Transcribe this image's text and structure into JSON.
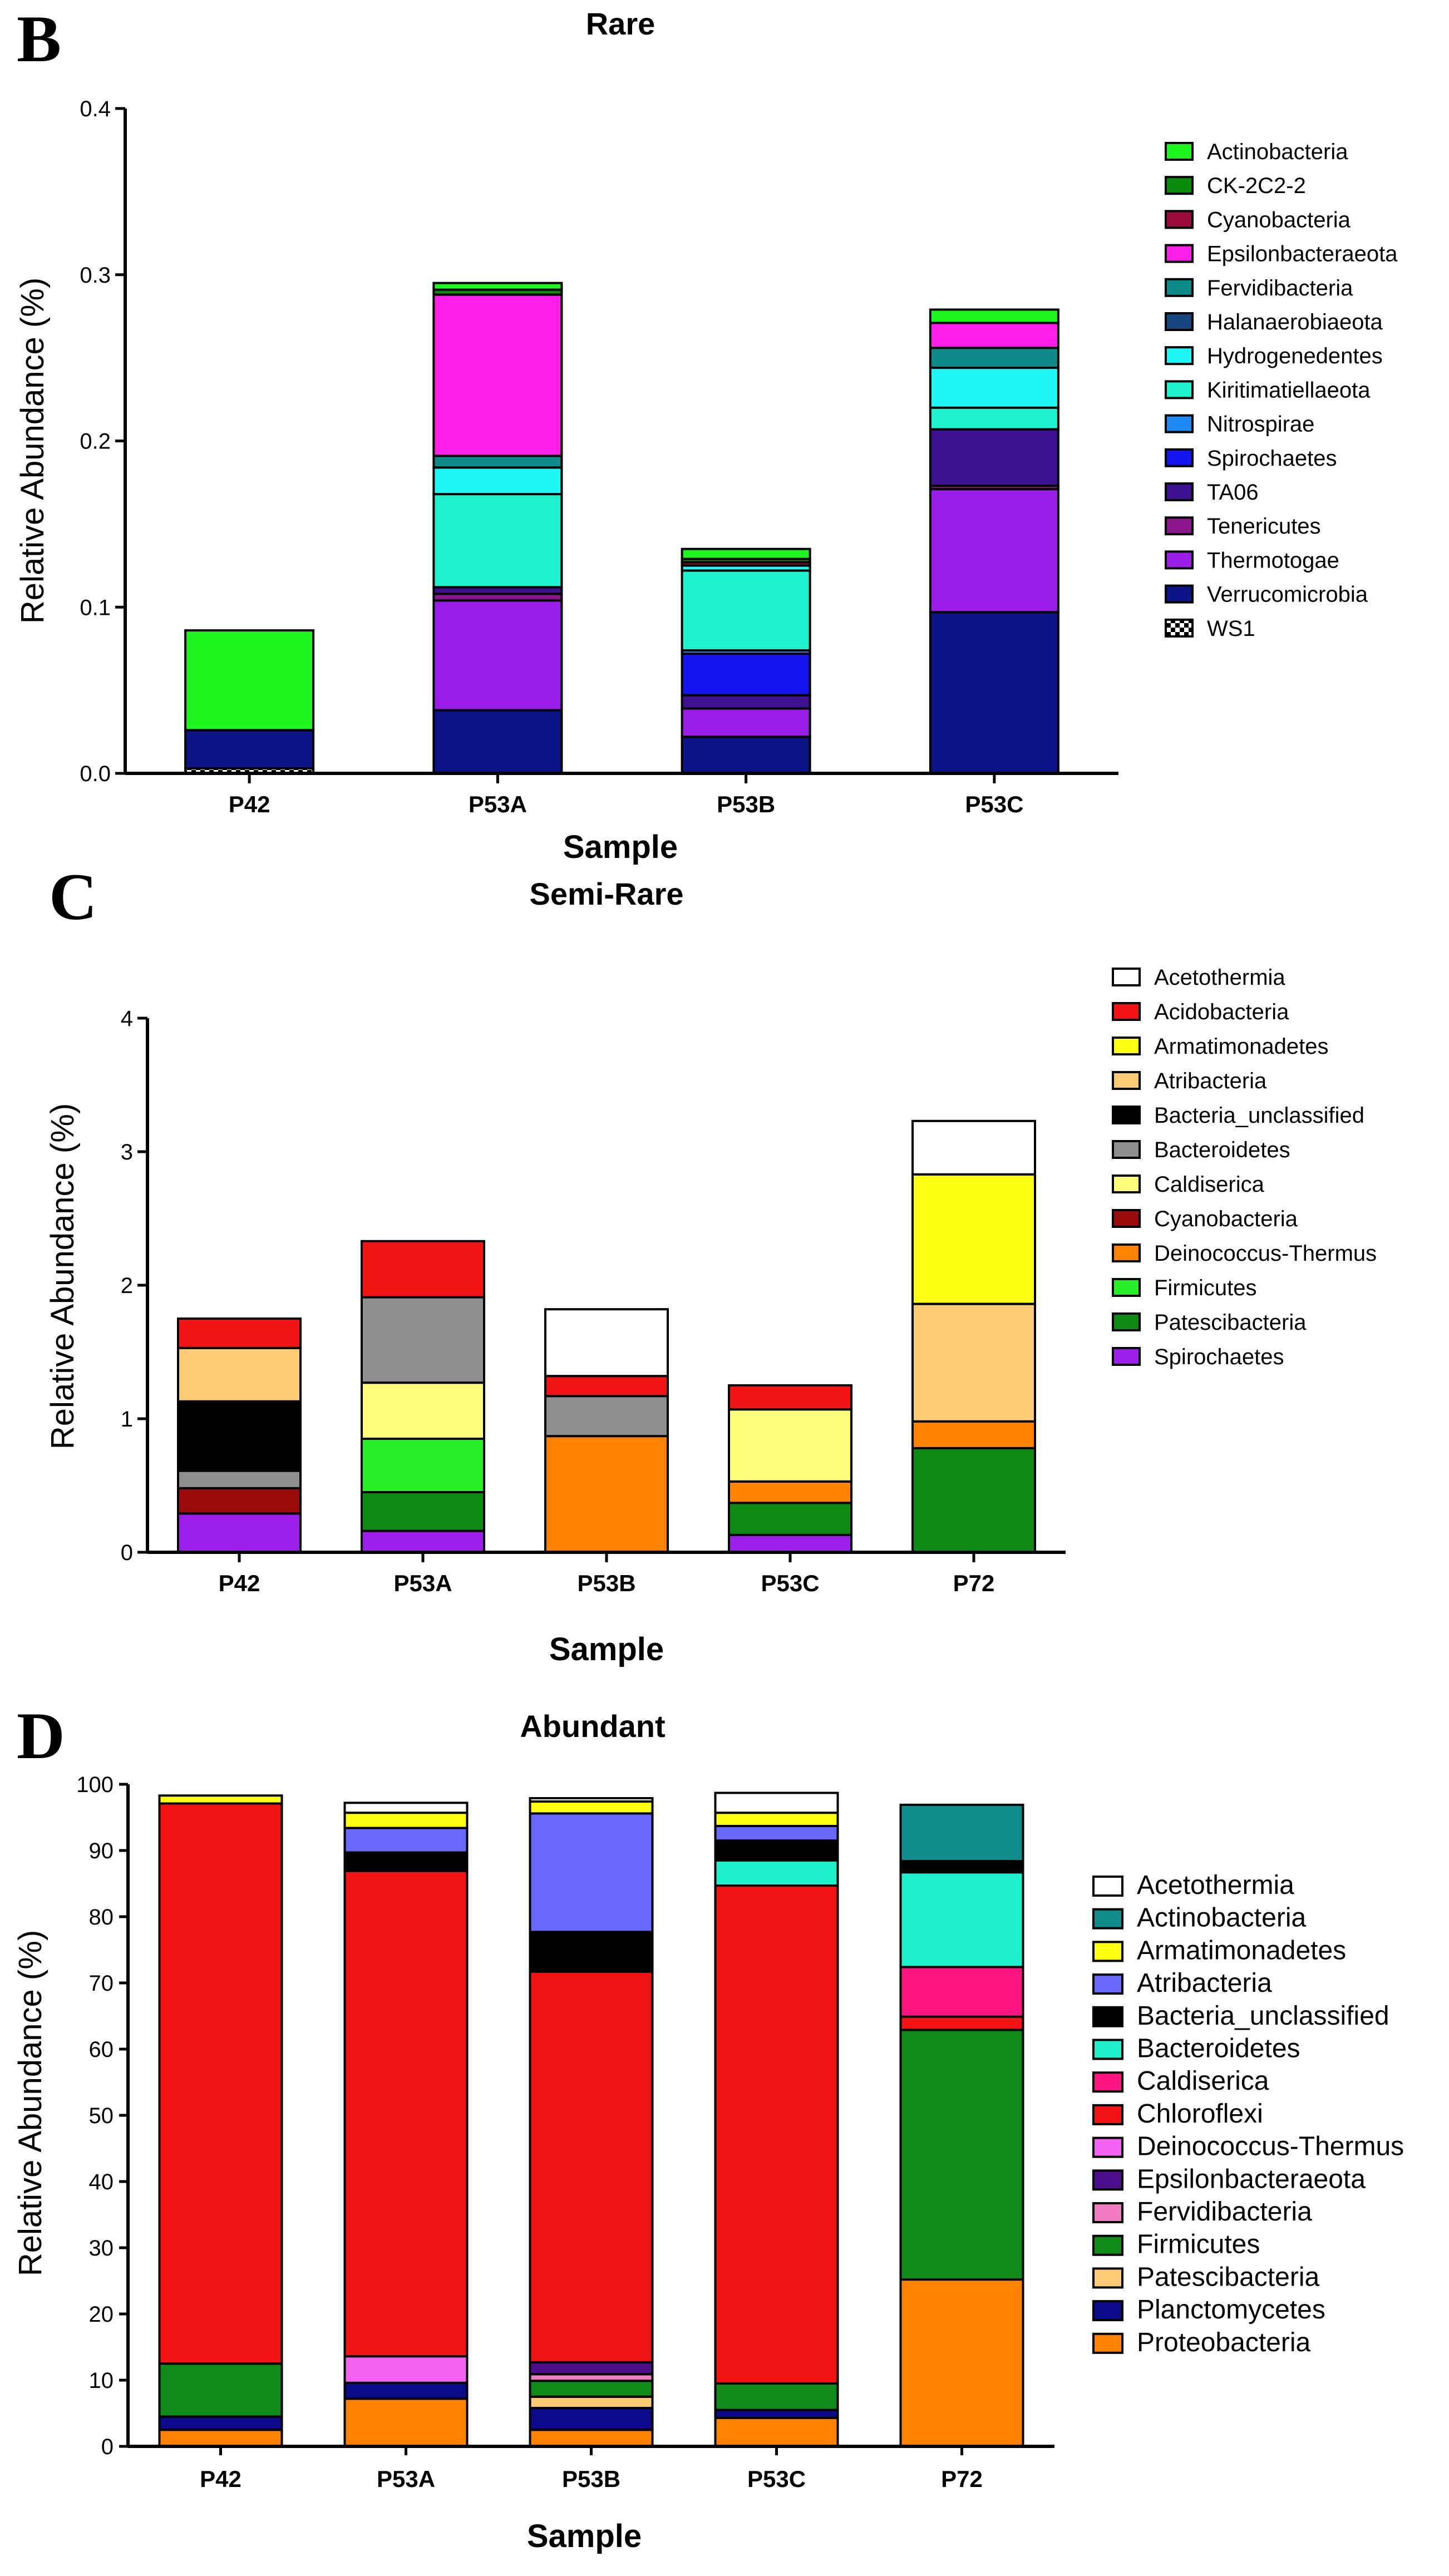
{
  "chart_data": [
    {
      "type": "bar",
      "stacked": true,
      "panel": "B",
      "title": "Rare",
      "xlabel": "Sample",
      "ylabel": "Relative Abundance (%)",
      "ylim": [
        0,
        0.4
      ],
      "yticks": [
        "0.0",
        "0.1",
        "0.2",
        "0.3",
        "0.4"
      ],
      "categories": [
        "P42",
        "P53A",
        "P53B",
        "P53C"
      ],
      "legend_position": "right",
      "series": [
        {
          "name": "Actinobacteria",
          "color": "#1ef41e",
          "values": [
            0.06,
            0.004,
            0.006,
            0.008
          ]
        },
        {
          "name": "CK-2C2-2",
          "color": "#0b8a0b",
          "values": [
            0.0,
            0.003,
            0.002,
            0.0
          ]
        },
        {
          "name": "Cyanobacteria",
          "color": "#9b0a3c",
          "values": [
            0.0,
            0.0,
            0.002,
            0.0
          ]
        },
        {
          "name": "Epsilonbacteraeota",
          "color": "#ff1fe8",
          "values": [
            0.0,
            0.097,
            0.0,
            0.015
          ]
        },
        {
          "name": "Fervidibacteria",
          "color": "#0f8a8a",
          "values": [
            0.0,
            0.007,
            0.0,
            0.012
          ]
        },
        {
          "name": "Halanaerobiaeota",
          "color": "#15467e",
          "values": [
            0.0,
            0.0,
            0.0,
            0.0
          ]
        },
        {
          "name": "Hydrogenedentes",
          "color": "#1ff6f6",
          "values": [
            0.0,
            0.016,
            0.003,
            0.024
          ]
        },
        {
          "name": "Kiritimatiellaeota",
          "color": "#1ff2cf",
          "values": [
            0.0,
            0.056,
            0.048,
            0.013
          ]
        },
        {
          "name": "Nitrospirae",
          "color": "#1f8af4",
          "values": [
            0.0,
            0.0,
            0.002,
            0.0
          ]
        },
        {
          "name": "Spirochaetes",
          "color": "#1414ee",
          "values": [
            0.0,
            0.0,
            0.025,
            0.0
          ]
        },
        {
          "name": "TA06",
          "color": "#3e1092",
          "values": [
            0.0,
            0.004,
            0.008,
            0.034
          ]
        },
        {
          "name": "Tenericutes",
          "color": "#8c178c",
          "values": [
            0.0,
            0.004,
            0.0,
            0.002
          ]
        },
        {
          "name": "Thermotogae",
          "color": "#9a1ee8",
          "values": [
            0.0,
            0.066,
            0.017,
            0.074
          ]
        },
        {
          "name": "Verrucomicrobia",
          "color": "#0c1488",
          "values": [
            0.023,
            0.038,
            0.022,
            0.097
          ]
        },
        {
          "name": "WS1",
          "color": "#ffffff",
          "pattern": "checker",
          "values": [
            0.003,
            0.0,
            0.0,
            0.0
          ]
        }
      ]
    },
    {
      "type": "bar",
      "stacked": true,
      "panel": "C",
      "title": "Semi-Rare",
      "xlabel": "Sample",
      "ylabel": "Relative Abundance (%)",
      "ylim": [
        0,
        4
      ],
      "yticks": [
        "0",
        "1",
        "2",
        "3",
        "4"
      ],
      "categories": [
        "P42",
        "P53A",
        "P53B",
        "P53C",
        "P72"
      ],
      "legend_position": "right",
      "series": [
        {
          "name": "Acetothermia",
          "color": "#ffffff",
          "values": [
            0.0,
            0.0,
            0.5,
            0.0,
            0.4
          ]
        },
        {
          "name": "Acidobacteria",
          "color": "#f21414",
          "values": [
            0.22,
            0.42,
            0.15,
            0.18,
            0.0
          ]
        },
        {
          "name": "Armatimonadetes",
          "color": "#ffff14",
          "values": [
            0.0,
            0.0,
            0.0,
            0.0,
            0.97
          ]
        },
        {
          "name": "Atribacteria",
          "color": "#fdca75",
          "values": [
            0.4,
            0.0,
            0.0,
            0.0,
            0.88
          ]
        },
        {
          "name": "Bacteria_unclassified",
          "color": "#000000",
          "values": [
            0.52,
            0.0,
            0.0,
            0.0,
            0.0
          ]
        },
        {
          "name": "Bacteroidetes",
          "color": "#8f8f8f",
          "values": [
            0.13,
            0.64,
            0.3,
            0.0,
            0.0
          ]
        },
        {
          "name": "Caldiserica",
          "color": "#fdfd7b",
          "values": [
            0.0,
            0.42,
            0.0,
            0.54,
            0.0
          ]
        },
        {
          "name": "Cyanobacteria",
          "color": "#9a0c0c",
          "values": [
            0.19,
            0.0,
            0.0,
            0.0,
            0.0
          ]
        },
        {
          "name": "Deinococcus-Thermus",
          "color": "#ff8300",
          "values": [
            0.0,
            0.0,
            0.87,
            0.16,
            0.2
          ]
        },
        {
          "name": "Firmicutes",
          "color": "#28ee28",
          "values": [
            0.0,
            0.4,
            0.0,
            0.0,
            0.0
          ]
        },
        {
          "name": "Patescibacteria",
          "color": "#0e8a14",
          "values": [
            0.0,
            0.29,
            0.0,
            0.24,
            0.78
          ]
        },
        {
          "name": "Spirochaetes",
          "color": "#9b1fe8",
          "values": [
            0.29,
            0.16,
            0.0,
            0.13,
            0.0
          ]
        }
      ]
    },
    {
      "type": "bar",
      "stacked": true,
      "panel": "D",
      "title": "Abundant",
      "xlabel": "Sample",
      "ylabel": "Relative Abundance (%)",
      "ylim": [
        0,
        100
      ],
      "yticks": [
        "0",
        "10",
        "20",
        "30",
        "40",
        "50",
        "60",
        "70",
        "80",
        "90",
        "100"
      ],
      "categories": [
        "P42",
        "P53A",
        "P53B",
        "P53C",
        "P72"
      ],
      "legend_position": "right",
      "series": [
        {
          "name": "Acetothermia",
          "color": "#ffffff",
          "values": [
            0.0,
            1.5,
            0.5,
            3.0,
            0.0
          ]
        },
        {
          "name": "Actinobacteria",
          "color": "#108c8c",
          "values": [
            0.0,
            0.0,
            0.0,
            0.0,
            8.5
          ]
        },
        {
          "name": "Armatimonadetes",
          "color": "#ffff14",
          "values": [
            1.2,
            2.3,
            1.8,
            2.0,
            0.0
          ]
        },
        {
          "name": "Atribacteria",
          "color": "#6868ff",
          "values": [
            0.0,
            3.7,
            17.9,
            2.2,
            0.0
          ]
        },
        {
          "name": "Bacteria_unclassified",
          "color": "#000000",
          "values": [
            0.0,
            2.8,
            6.0,
            3.0,
            1.7
          ]
        },
        {
          "name": "Bacteroidetes",
          "color": "#1ff0cc",
          "values": [
            0.0,
            0.0,
            0.0,
            3.8,
            14.3
          ]
        },
        {
          "name": "Caldiserica",
          "color": "#ff1480",
          "values": [
            0.0,
            0.0,
            0.0,
            0.0,
            7.5
          ]
        },
        {
          "name": "Chloroflexi",
          "color": "#f21414",
          "values": [
            84.6,
            73.3,
            59.0,
            75.2,
            2.0
          ]
        },
        {
          "name": "Deinococcus-Thermus",
          "color": "#f462f4",
          "values": [
            0.0,
            4.0,
            0.0,
            0.0,
            0.0
          ]
        },
        {
          "name": "Epsilonbacteraeota",
          "color": "#4c0e8a",
          "values": [
            0.0,
            0.0,
            1.8,
            0.0,
            0.0
          ]
        },
        {
          "name": "Fervidibacteria",
          "color": "#f27cc2",
          "values": [
            0.0,
            0.0,
            1.0,
            0.0,
            0.0
          ]
        },
        {
          "name": "Firmicutes",
          "color": "#108a18",
          "values": [
            8.0,
            0.0,
            2.4,
            4.0,
            37.7
          ]
        },
        {
          "name": "Patescibacteria",
          "color": "#fdca75",
          "values": [
            0.0,
            0.0,
            1.7,
            0.0,
            0.0
          ]
        },
        {
          "name": "Planctomycetes",
          "color": "#0a0a8a",
          "values": [
            2.0,
            2.4,
            3.3,
            1.2,
            0.0
          ]
        },
        {
          "name": "Proteobacteria",
          "color": "#ff8300",
          "values": [
            2.5,
            7.2,
            2.5,
            4.3,
            25.2
          ]
        }
      ]
    }
  ]
}
